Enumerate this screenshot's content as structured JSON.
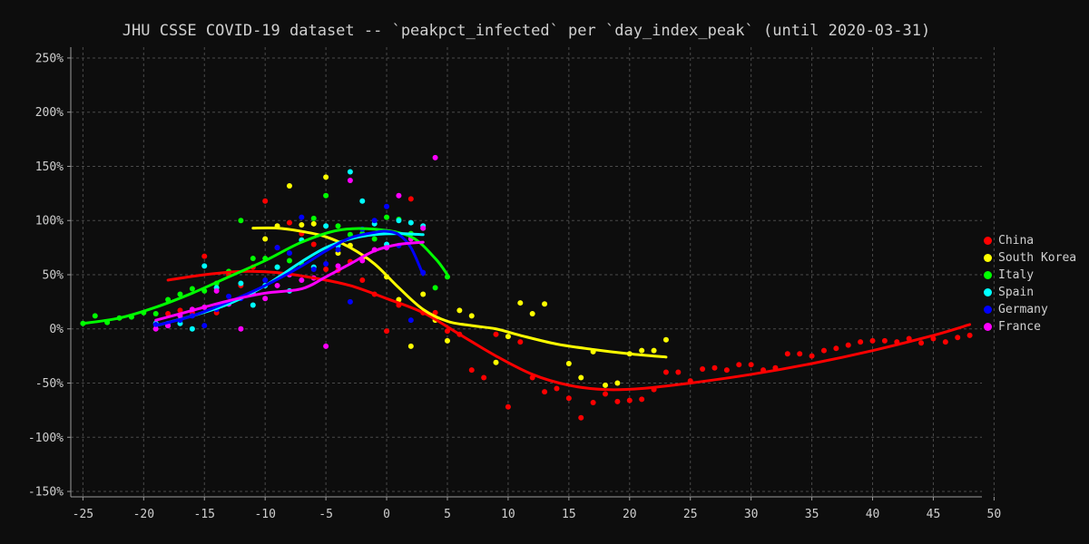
{
  "chart_data": {
    "type": "scatter",
    "title": "JHU CSSE COVID-19 dataset -- `peakpct_infected` per `day_index_peak` (until 2020-03-31)",
    "xlabel": "",
    "ylabel": "",
    "xlim": [
      -26,
      49
    ],
    "ylim": [
      -155,
      260
    ],
    "x_ticks": [
      -25,
      -20,
      -15,
      -10,
      -5,
      0,
      5,
      10,
      15,
      20,
      25,
      30,
      35,
      40,
      45,
      50
    ],
    "y_ticks": [
      -150,
      -100,
      -50,
      0,
      50,
      100,
      150,
      200,
      250
    ],
    "y_tick_suffix": "%",
    "grid": true,
    "legend_position": "right",
    "series": [
      {
        "name": "China",
        "color": "#ff0000",
        "points": [
          [
            -18,
            14
          ],
          [
            -17,
            17
          ],
          [
            -16,
            15
          ],
          [
            -15,
            67
          ],
          [
            -14,
            15
          ],
          [
            -13,
            50
          ],
          [
            -12,
            40
          ],
          [
            -11,
            57
          ],
          [
            -10,
            118
          ],
          [
            -9,
            75
          ],
          [
            -8,
            98
          ],
          [
            -7,
            88
          ],
          [
            -6,
            78
          ],
          [
            -5,
            55
          ],
          [
            -4,
            54
          ],
          [
            -3,
            62
          ],
          [
            -2,
            45
          ],
          [
            -1,
            32
          ],
          [
            0,
            -2
          ],
          [
            1,
            22
          ],
          [
            2,
            120
          ],
          [
            3,
            15
          ],
          [
            4,
            15
          ],
          [
            5,
            -2
          ],
          [
            6,
            -5
          ],
          [
            7,
            -38
          ],
          [
            8,
            -45
          ],
          [
            9,
            -5
          ],
          [
            10,
            -72
          ],
          [
            11,
            -12
          ],
          [
            12,
            -45
          ],
          [
            13,
            -58
          ],
          [
            14,
            -55
          ],
          [
            15,
            -64
          ],
          [
            16,
            -82
          ],
          [
            17,
            -68
          ],
          [
            18,
            -60
          ],
          [
            19,
            -67
          ],
          [
            20,
            -66
          ],
          [
            21,
            -65
          ],
          [
            22,
            -56
          ],
          [
            23,
            -40
          ],
          [
            24,
            -40
          ],
          [
            25,
            -48
          ],
          [
            26,
            -37
          ],
          [
            27,
            -36
          ],
          [
            28,
            -38
          ],
          [
            29,
            -33
          ],
          [
            30,
            -33
          ],
          [
            31,
            -38
          ],
          [
            32,
            -36
          ],
          [
            33,
            -23
          ],
          [
            34,
            -23
          ],
          [
            35,
            -25
          ],
          [
            36,
            -20
          ],
          [
            37,
            -18
          ],
          [
            38,
            -15
          ],
          [
            39,
            -12
          ],
          [
            40,
            -11
          ],
          [
            41,
            -11
          ],
          [
            42,
            -12
          ],
          [
            43,
            -9
          ],
          [
            44,
            -13
          ],
          [
            45,
            -9
          ],
          [
            46,
            -12
          ],
          [
            47,
            -8
          ],
          [
            48,
            -6
          ]
        ],
        "trend": [
          [
            -18,
            45
          ],
          [
            -15,
            50
          ],
          [
            -12,
            53
          ],
          [
            -9,
            52
          ],
          [
            -6,
            47
          ],
          [
            -3,
            40
          ],
          [
            0,
            28
          ],
          [
            3,
            15
          ],
          [
            6,
            -5
          ],
          [
            9,
            -25
          ],
          [
            12,
            -42
          ],
          [
            15,
            -52
          ],
          [
            18,
            -56
          ],
          [
            21,
            -55
          ],
          [
            25,
            -50
          ],
          [
            30,
            -42
          ],
          [
            35,
            -32
          ],
          [
            40,
            -20
          ],
          [
            45,
            -6
          ],
          [
            48,
            4
          ]
        ]
      },
      {
        "name": "South Korea",
        "color": "#ffff00",
        "points": [
          [
            -10,
            83
          ],
          [
            -9,
            95
          ],
          [
            -8,
            132
          ],
          [
            -7,
            96
          ],
          [
            -6,
            97
          ],
          [
            -5,
            140
          ],
          [
            -4,
            70
          ],
          [
            -3,
            77
          ],
          [
            -2,
            65
          ],
          [
            0,
            48
          ],
          [
            1,
            27
          ],
          [
            2,
            -16
          ],
          [
            3,
            32
          ],
          [
            4,
            8
          ],
          [
            5,
            -11
          ],
          [
            6,
            17
          ],
          [
            7,
            12
          ],
          [
            9,
            -31
          ],
          [
            10,
            -7
          ],
          [
            11,
            24
          ],
          [
            12,
            14
          ],
          [
            13,
            23
          ],
          [
            15,
            -32
          ],
          [
            16,
            -45
          ],
          [
            17,
            -21
          ],
          [
            18,
            -52
          ],
          [
            19,
            -50
          ],
          [
            20,
            -23
          ],
          [
            21,
            -20
          ],
          [
            22,
            -20
          ],
          [
            23,
            -10
          ]
        ],
        "trend": [
          [
            -11,
            93
          ],
          [
            -9,
            93
          ],
          [
            -7,
            90
          ],
          [
            -5,
            85
          ],
          [
            -3,
            75
          ],
          [
            -1,
            60
          ],
          [
            1,
            38
          ],
          [
            3,
            18
          ],
          [
            5,
            7
          ],
          [
            7,
            3
          ],
          [
            9,
            0
          ],
          [
            11,
            -6
          ],
          [
            14,
            -14
          ],
          [
            17,
            -19
          ],
          [
            20,
            -23
          ],
          [
            23,
            -26
          ]
        ]
      },
      {
        "name": "Italy",
        "color": "#00ff00",
        "points": [
          [
            -25,
            5
          ],
          [
            -24,
            12
          ],
          [
            -23,
            6
          ],
          [
            -22,
            10
          ],
          [
            -21,
            11
          ],
          [
            -20,
            15
          ],
          [
            -19,
            14
          ],
          [
            -18,
            27
          ],
          [
            -17,
            32
          ],
          [
            -16,
            37
          ],
          [
            -15,
            35
          ],
          [
            -14,
            42
          ],
          [
            -13,
            53
          ],
          [
            -12,
            100
          ],
          [
            -11,
            65
          ],
          [
            -10,
            65
          ],
          [
            -9,
            57
          ],
          [
            -8,
            63
          ],
          [
            -7,
            60
          ],
          [
            -6,
            102
          ],
          [
            -5,
            123
          ],
          [
            -4,
            95
          ],
          [
            -3,
            87
          ],
          [
            -2,
            88
          ],
          [
            -1,
            83
          ],
          [
            0,
            103
          ],
          [
            1,
            101
          ],
          [
            2,
            88
          ],
          [
            3,
            93
          ],
          [
            4,
            38
          ],
          [
            5,
            48
          ]
        ],
        "trend": [
          [
            -25,
            5
          ],
          [
            -22,
            10
          ],
          [
            -19,
            20
          ],
          [
            -16,
            33
          ],
          [
            -13,
            48
          ],
          [
            -10,
            63
          ],
          [
            -7,
            80
          ],
          [
            -4,
            91
          ],
          [
            -1,
            92
          ],
          [
            2,
            85
          ],
          [
            4,
            65
          ],
          [
            5,
            50
          ]
        ]
      },
      {
        "name": "Spain",
        "color": "#00ffff",
        "points": [
          [
            -19,
            5
          ],
          [
            -18,
            3
          ],
          [
            -17,
            5
          ],
          [
            -16,
            0
          ],
          [
            -15,
            58
          ],
          [
            -14,
            38
          ],
          [
            -13,
            23
          ],
          [
            -12,
            42
          ],
          [
            -11,
            22
          ],
          [
            -10,
            40
          ],
          [
            -9,
            57
          ],
          [
            -8,
            35
          ],
          [
            -7,
            82
          ],
          [
            -6,
            57
          ],
          [
            -5,
            95
          ],
          [
            -4,
            77
          ],
          [
            -3,
            145
          ],
          [
            -2,
            118
          ],
          [
            -1,
            97
          ],
          [
            0,
            78
          ],
          [
            1,
            100
          ],
          [
            2,
            98
          ],
          [
            3,
            95
          ]
        ],
        "trend": [
          [
            -19,
            3
          ],
          [
            -16,
            12
          ],
          [
            -13,
            23
          ],
          [
            -10,
            40
          ],
          [
            -7,
            62
          ],
          [
            -5,
            75
          ],
          [
            -3,
            83
          ],
          [
            -1,
            87
          ],
          [
            1,
            88
          ],
          [
            3,
            87
          ]
        ]
      },
      {
        "name": "Germany",
        "color": "#0000ff",
        "points": [
          [
            -19,
            4
          ],
          [
            -18,
            5
          ],
          [
            -17,
            8
          ],
          [
            -16,
            12
          ],
          [
            -15,
            3
          ],
          [
            -14,
            18
          ],
          [
            -13,
            30
          ],
          [
            -12,
            28
          ],
          [
            -11,
            32
          ],
          [
            -10,
            45
          ],
          [
            -9,
            75
          ],
          [
            -8,
            70
          ],
          [
            -7,
            103
          ],
          [
            -6,
            55
          ],
          [
            -5,
            60
          ],
          [
            -4,
            73
          ],
          [
            -3,
            25
          ],
          [
            -2,
            92
          ],
          [
            -1,
            100
          ],
          [
            0,
            113
          ],
          [
            1,
            77
          ],
          [
            2,
            8
          ],
          [
            3,
            52
          ]
        ],
        "trend": [
          [
            -19,
            3
          ],
          [
            -16,
            12
          ],
          [
            -13,
            25
          ],
          [
            -10,
            40
          ],
          [
            -7,
            58
          ],
          [
            -5,
            72
          ],
          [
            -3,
            84
          ],
          [
            -1,
            89
          ],
          [
            0,
            90
          ],
          [
            1,
            87
          ],
          [
            2,
            75
          ],
          [
            3,
            50
          ]
        ]
      },
      {
        "name": "France",
        "color": "#ff00ff",
        "points": [
          [
            -19,
            0
          ],
          [
            -18,
            3
          ],
          [
            -17,
            12
          ],
          [
            -16,
            18
          ],
          [
            -15,
            20
          ],
          [
            -14,
            35
          ],
          [
            -13,
            23
          ],
          [
            -12,
            0
          ],
          [
            -11,
            33
          ],
          [
            -10,
            28
          ],
          [
            -9,
            40
          ],
          [
            -8,
            50
          ],
          [
            -7,
            45
          ],
          [
            -6,
            47
          ],
          [
            -5,
            -16
          ],
          [
            -4,
            58
          ],
          [
            -3,
            137
          ],
          [
            -2,
            63
          ],
          [
            -1,
            73
          ],
          [
            0,
            75
          ],
          [
            1,
            123
          ],
          [
            2,
            83
          ],
          [
            3,
            93
          ],
          [
            4,
            158
          ]
        ],
        "trend": [
          [
            -19,
            8
          ],
          [
            -16,
            17
          ],
          [
            -13,
            26
          ],
          [
            -10,
            33
          ],
          [
            -7,
            37
          ],
          [
            -5,
            48
          ],
          [
            -3,
            60
          ],
          [
            -1,
            72
          ],
          [
            1,
            78
          ],
          [
            3,
            80
          ]
        ]
      }
    ]
  }
}
